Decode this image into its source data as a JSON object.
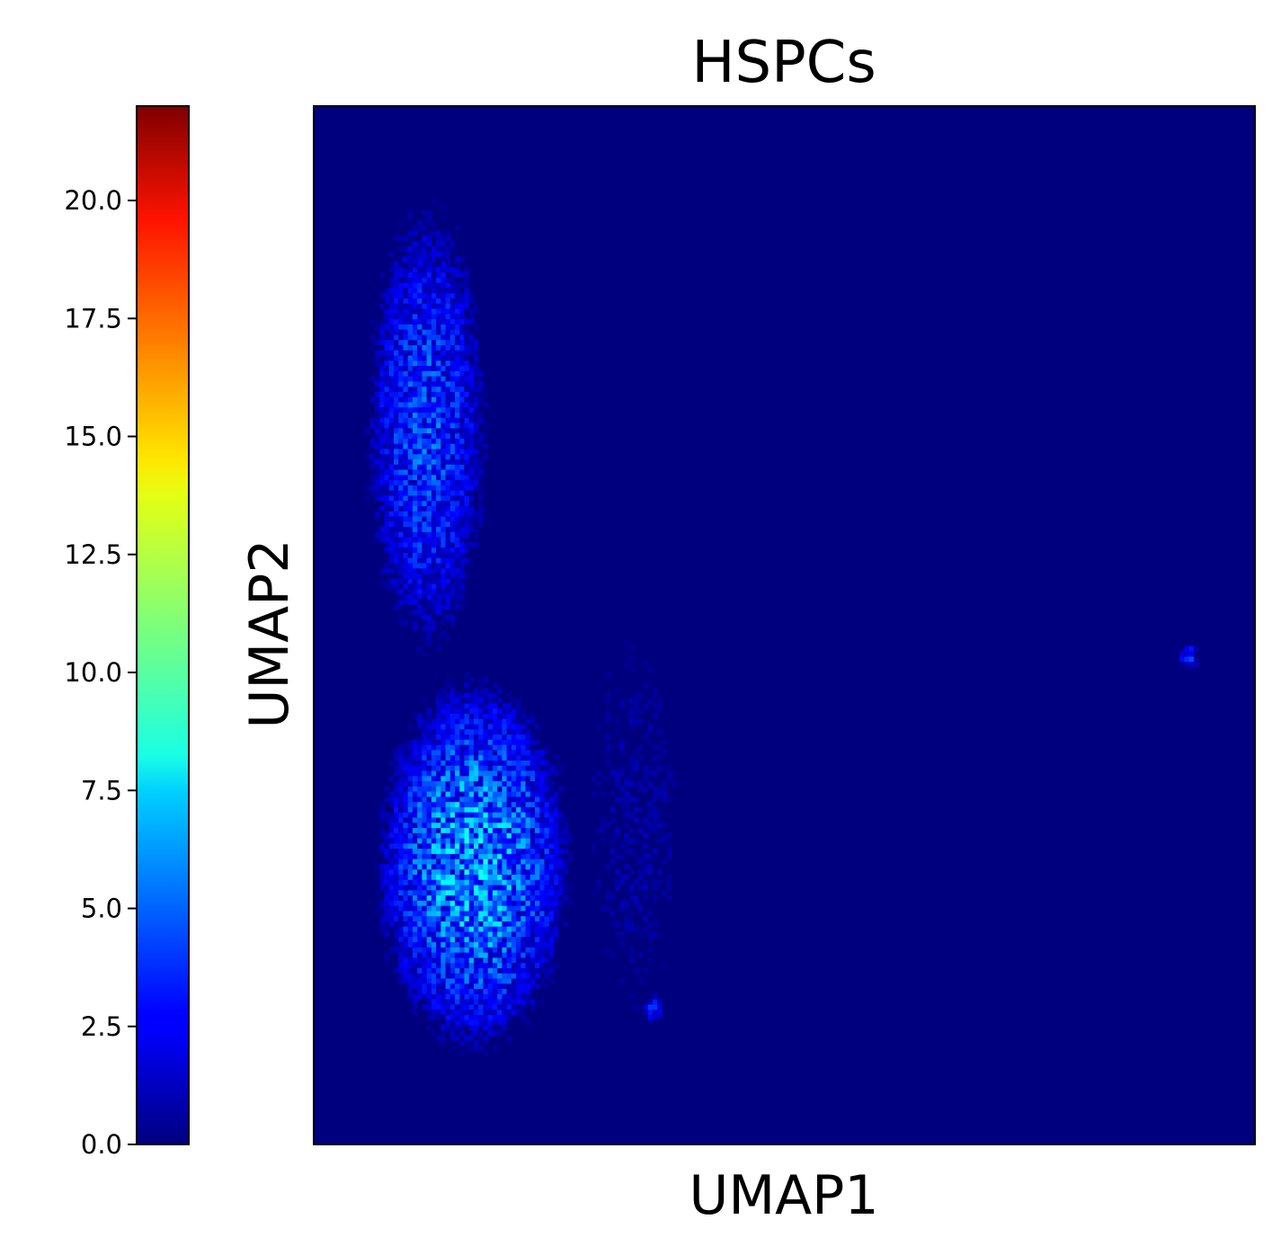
{
  "chart_data": {
    "type": "heatmap",
    "title": "HSPCs",
    "xlabel": "UMAP1",
    "ylabel": "UMAP2",
    "x_ticks_shown": false,
    "y_ticks_shown": false,
    "colormap": "jet",
    "colorbar": {
      "position": "left",
      "vmin": 0,
      "vmax": 22,
      "ticks": [
        0.0,
        2.5,
        5.0,
        7.5,
        10.0,
        12.5,
        15.0,
        17.5,
        20.0
      ],
      "tick_labels": [
        "0.0",
        "2.5",
        "5.0",
        "7.5",
        "10.0",
        "12.5",
        "15.0",
        "17.5",
        "20.0"
      ]
    },
    "background_value": 0,
    "bins": [
      200,
      200
    ],
    "density_regions": [
      {
        "label": "lower-left cluster",
        "x_range": [
          0.06,
          0.28
        ],
        "y_range": [
          0.08,
          0.46
        ],
        "peak_value": 6
      },
      {
        "label": "left vertical band",
        "x_range": [
          0.05,
          0.19
        ],
        "y_range": [
          0.46,
          0.92
        ],
        "peak_value": 4
      },
      {
        "label": "middle scatter",
        "x_range": [
          0.28,
          0.4
        ],
        "y_range": [
          0.1,
          0.52
        ],
        "peak_value": 1
      },
      {
        "label": "small cluster near bottom",
        "x_center": 0.36,
        "y_center": 0.13,
        "peak_value": 3
      },
      {
        "label": "small cluster right",
        "x_center": 0.93,
        "y_center": 0.47,
        "peak_value": 3
      }
    ]
  }
}
